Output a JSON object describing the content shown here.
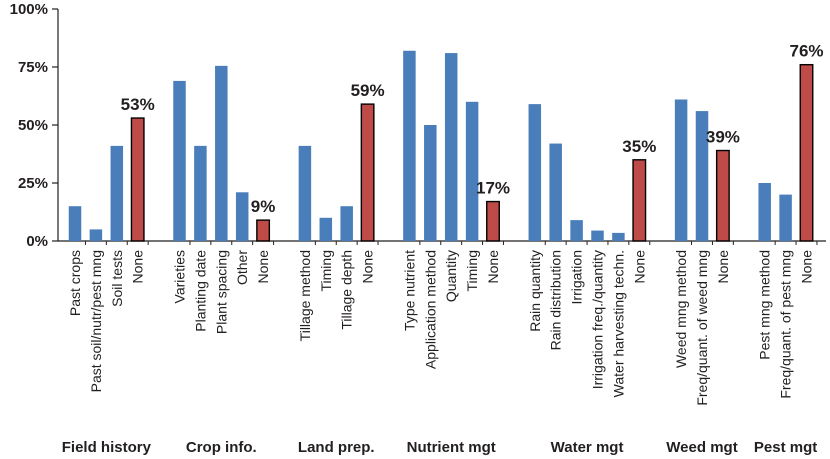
{
  "chart_data": {
    "type": "bar",
    "ylim": [
      0,
      100
    ],
    "yticks": [
      "0%",
      "25%",
      "50%",
      "75%",
      "100%"
    ],
    "ytick_values": [
      0,
      25,
      50,
      75,
      100
    ],
    "grid": false,
    "colors": {
      "info": "#4a7ebb",
      "none": "#be4b48",
      "none_border": "#000000",
      "axis": "#231f20"
    },
    "groups": [
      {
        "name": "Field history",
        "items": [
          {
            "label": "Past crops",
            "value": 15,
            "kind": "info"
          },
          {
            "label": "Past soil/nutr/pest mng",
            "value": 5,
            "kind": "info"
          },
          {
            "label": "Soil tests",
            "value": 41,
            "kind": "info"
          },
          {
            "label": "None",
            "value": 53,
            "kind": "none",
            "data_label": "53%"
          }
        ]
      },
      {
        "name": "Crop info.",
        "items": [
          {
            "label": "Varieties",
            "value": 69,
            "kind": "info"
          },
          {
            "label": "Planting date",
            "value": 41,
            "kind": "info"
          },
          {
            "label": "Plant spacing",
            "value": 75.5,
            "kind": "info"
          },
          {
            "label": "Other",
            "value": 21,
            "kind": "info"
          },
          {
            "label": "None",
            "value": 9,
            "kind": "none",
            "data_label": "9%"
          }
        ]
      },
      {
        "name": "Land prep.",
        "items": [
          {
            "label": "Tillage method",
            "value": 41,
            "kind": "info"
          },
          {
            "label": "Timing",
            "value": 10,
            "kind": "info"
          },
          {
            "label": "Tillage depth",
            "value": 15,
            "kind": "info"
          },
          {
            "label": "None",
            "value": 59,
            "kind": "none",
            "data_label": "59%"
          }
        ]
      },
      {
        "name": "Nutrient mgt",
        "items": [
          {
            "label": "Type nutrient",
            "value": 82,
            "kind": "info"
          },
          {
            "label": "Application method",
            "value": 50,
            "kind": "info"
          },
          {
            "label": "Quantity",
            "value": 81,
            "kind": "info"
          },
          {
            "label": "Timing",
            "value": 60,
            "kind": "info"
          },
          {
            "label": "None",
            "value": 17,
            "kind": "none",
            "data_label": "17%"
          }
        ]
      },
      {
        "name": "Water mgt",
        "items": [
          {
            "label": "Rain quantity",
            "value": 59,
            "kind": "info"
          },
          {
            "label": "Rain distribution",
            "value": 42,
            "kind": "info"
          },
          {
            "label": "Irrigation",
            "value": 9,
            "kind": "info"
          },
          {
            "label": "Irrigation freq./quantity",
            "value": 4.5,
            "kind": "info"
          },
          {
            "label": "Water harvesting techn.",
            "value": 3.5,
            "kind": "info"
          },
          {
            "label": "None",
            "value": 35,
            "kind": "none",
            "data_label": "35%"
          }
        ]
      },
      {
        "name": "Weed mgt",
        "items": [
          {
            "label": "Weed mng method",
            "value": 61,
            "kind": "info"
          },
          {
            "label": "Freq/quant. of weed mng",
            "value": 56,
            "kind": "info"
          },
          {
            "label": "None",
            "value": 39,
            "kind": "none",
            "data_label": "39%"
          }
        ]
      },
      {
        "name": "Pest mgt",
        "items": [
          {
            "label": "Pest mng method",
            "value": 25,
            "kind": "info"
          },
          {
            "label": "Freq/quant. of pest mng",
            "value": 20,
            "kind": "info"
          },
          {
            "label": "None",
            "value": 76,
            "kind": "none",
            "data_label": "76%"
          }
        ]
      }
    ]
  }
}
